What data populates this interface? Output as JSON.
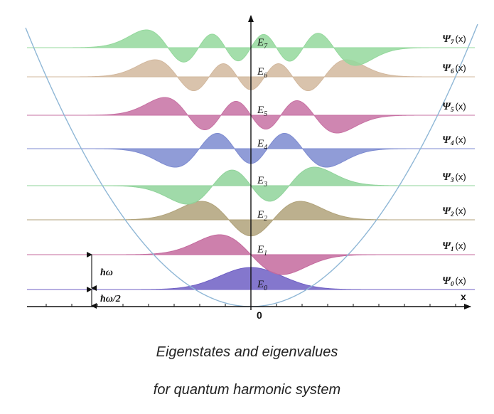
{
  "figure": {
    "x_axis_label": "x",
    "origin_label": "0",
    "quantum_label": "ħω",
    "half_quantum_label": "ħω/2"
  },
  "levels": [
    {
      "n": 0,
      "energy_symbol": "E",
      "energy_index": "0",
      "psi_symbol": "Ψ",
      "psi_index": "0",
      "psi_argument": "(x)",
      "color": "#6f5fc4"
    },
    {
      "n": 1,
      "energy_symbol": "E",
      "energy_index": "1",
      "psi_symbol": "Ψ",
      "psi_index": "1",
      "psi_argument": "(x)",
      "color": "#c46a9e"
    },
    {
      "n": 2,
      "energy_symbol": "E",
      "energy_index": "2",
      "psi_symbol": "Ψ",
      "psi_index": "2",
      "psi_argument": "(x)",
      "color": "#b0a27a"
    },
    {
      "n": 3,
      "energy_symbol": "E",
      "energy_index": "3",
      "psi_symbol": "Ψ",
      "psi_index": "3",
      "psi_argument": "(x)",
      "color": "#8fd39a"
    },
    {
      "n": 4,
      "energy_symbol": "E",
      "energy_index": "4",
      "psi_symbol": "Ψ",
      "psi_index": "4",
      "psi_argument": "(x)",
      "color": "#7d8bd0"
    },
    {
      "n": 5,
      "energy_symbol": "E",
      "energy_index": "5",
      "psi_symbol": "Ψ",
      "psi_index": "5",
      "psi_argument": "(x)",
      "color": "#c771a3"
    },
    {
      "n": 6,
      "energy_symbol": "E",
      "energy_index": "6",
      "psi_symbol": "Ψ",
      "psi_index": "6",
      "psi_argument": "(x)",
      "color": "#d2b89e"
    },
    {
      "n": 7,
      "energy_symbol": "E",
      "energy_index": "7",
      "psi_symbol": "Ψ",
      "psi_index": "7",
      "psi_argument": "(x)",
      "color": "#94d89c"
    }
  ],
  "potential_color": "#8fb7d6",
  "caption": {
    "line1": "Eigenstates and eigenvalues",
    "line2": "for quantum harmonic system"
  }
}
